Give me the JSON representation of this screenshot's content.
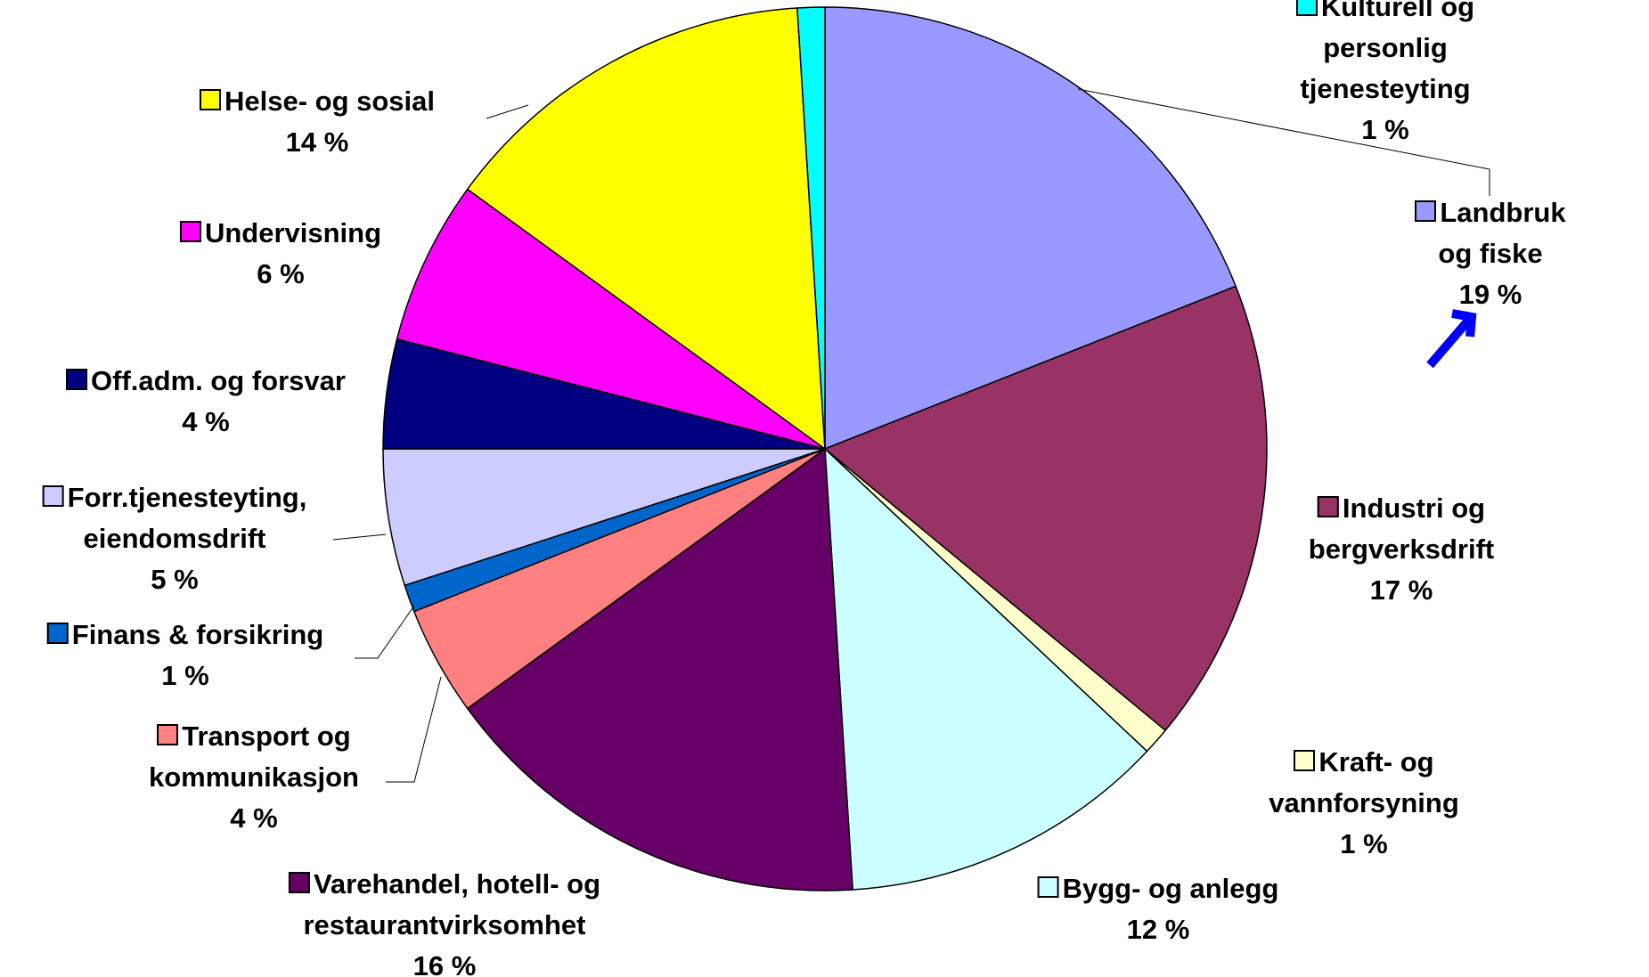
{
  "chart_data": {
    "type": "pie",
    "categories": [
      "Landbruk og fiske",
      "Industri og\nbergverksdrift",
      "Kraft- og vannforsyning",
      "Bygg- og anlegg",
      "Varehandel, hotell- og\nrestaurantvirksomhet",
      "Transport og\nkommunikasjon",
      "Finans & forsikring",
      "Forr.tjenesteyting,\neiendomsdrift",
      "Off.adm. og forsvar",
      "Undervisning",
      "Helse- og sosial",
      "Kulturell og personlig\ntjenesteyting"
    ],
    "values": [
      19,
      17,
      1,
      12,
      16,
      4,
      1,
      5,
      4,
      6,
      14,
      1
    ],
    "value_labels": [
      "19 %",
      "17 %",
      "1 %",
      "12 %",
      "16 %",
      "4 %",
      "1 %",
      "5 %",
      "4 %",
      "6 %",
      "14 %",
      "1 %"
    ],
    "colors": [
      "#9999ff",
      "#993366",
      "#ffffcc",
      "#ccffff",
      "#660066",
      "#ff8080",
      "#0066cc",
      "#ccccff",
      "#000080",
      "#ff00ff",
      "#ffff00",
      "#00ffff"
    ]
  }
}
